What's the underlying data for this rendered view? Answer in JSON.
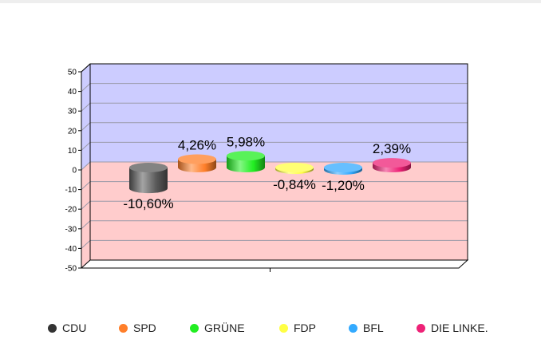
{
  "chart_data": {
    "type": "bar",
    "categories": [
      "CDU",
      "SPD",
      "GRÜNE",
      "FDP",
      "BFL",
      "DIE LINKE."
    ],
    "values": [
      -10.6,
      4.26,
      5.98,
      -0.84,
      -1.2,
      2.39
    ],
    "data_labels": [
      "-10,60%",
      "4,26%",
      "5,98%",
      "-0,84%",
      "-1,20%",
      "2,39%"
    ],
    "colors": [
      "#5a5a5a",
      "#ff7f2a",
      "#22ee22",
      "#ffff44",
      "#33aaff",
      "#ee2277"
    ],
    "ylim": [
      -50,
      50
    ],
    "yticks": [
      50,
      40,
      30,
      20,
      10,
      0,
      -10,
      -20,
      -30,
      -40,
      -50
    ],
    "positive_background": "#ccccff",
    "negative_background": "#ffcccc",
    "grid": true,
    "legend_position": "bottom",
    "bar_shape": "3d cylinder"
  }
}
